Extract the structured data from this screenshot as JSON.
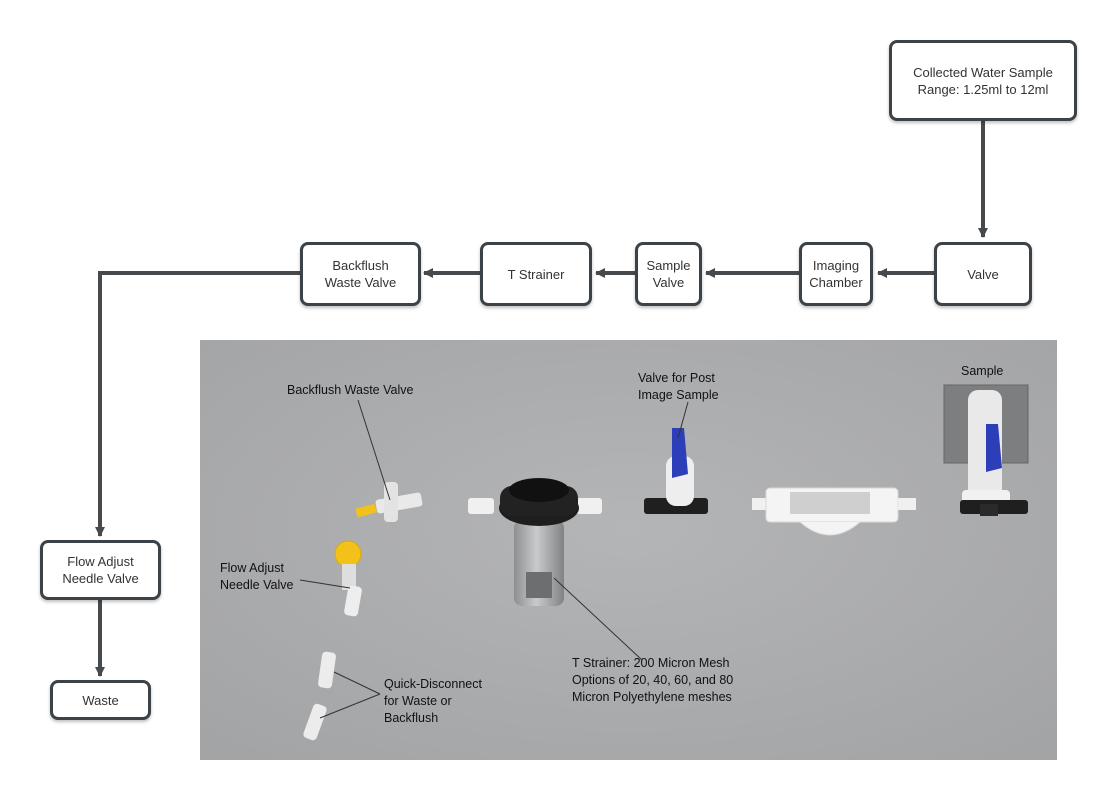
{
  "flow_boxes": {
    "collected": "Collected Water Sample\nRange: 1.25ml to 12ml",
    "valve": "Valve",
    "imaging": "Imaging\nChamber",
    "sample_valve": "Sample\nValve",
    "t_strainer": "T Strainer",
    "backflush": "Backflush\nWaste Valve",
    "flow_adjust": "Flow Adjust\nNeedle Valve",
    "waste": "Waste"
  },
  "photo_labels": {
    "sample": "Sample",
    "valve_post": "Valve for Post\nImage Sample",
    "backflush": "Backflush Waste Valve",
    "flow_adjust": "Flow Adjust\nNeedle Valve",
    "quick_disconnect": "Quick-Disconnect\nfor Waste or\nBackflush",
    "t_strainer": "T Strainer: 200 Micron Mesh\nOptions of 20, 40, 60, and 80\nMicron Polyethylene meshes"
  },
  "colors": {
    "box_border": "#3b4348",
    "connector": "#474a4c",
    "photo_bg": "#a9aaac",
    "handle_blue": "#2d3fb8",
    "handle_yellow": "#f2c21a"
  }
}
